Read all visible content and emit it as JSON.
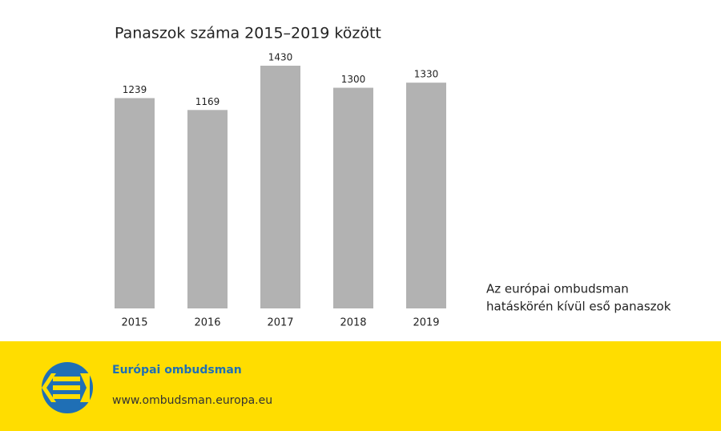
{
  "chart_data": {
    "type": "bar",
    "title": "Panaszok száma 2015–2019 között",
    "categories": [
      "2015",
      "2016",
      "2017",
      "2018",
      "2019"
    ],
    "values": [
      1239,
      1169,
      1430,
      1300,
      1330
    ],
    "color": "#b2b2b2",
    "note_lines": [
      "Az európai ombudsman",
      "hatáskörén kívül eső panaszok"
    ]
  },
  "footer": {
    "name": "Európai ombudsman",
    "url": "www.ombudsman.europa.eu"
  }
}
